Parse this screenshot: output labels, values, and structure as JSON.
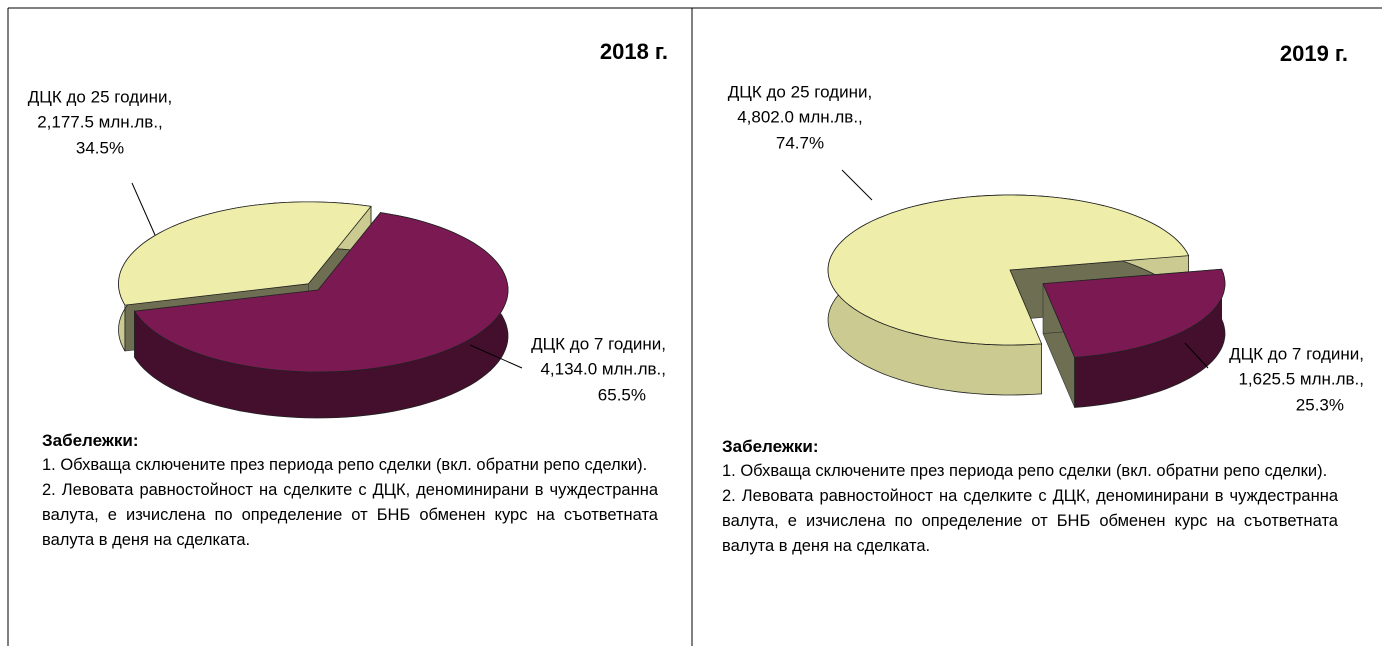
{
  "chart_data": [
    {
      "type": "pie3d",
      "title": "2018 г.",
      "categories": [
        "ДЦК до 25 години,",
        "ДЦК до 7 години,"
      ],
      "values": [
        2177.5,
        4134.0
      ],
      "value_labels": [
        "2,177.5 млн.лв.,",
        "4,134.0 млн.лв.,"
      ],
      "percentages": [
        34.5,
        65.5
      ],
      "percentage_labels": [
        "34.5%",
        "65.5%"
      ],
      "colors": [
        "#eeeeaa",
        "#7b1a52"
      ],
      "notes_title": "Забележки:",
      "notes": [
        "1.  Обхваща сключените през периода репо сделки (вкл. обратни репо сделки).",
        "2. Левовата равностойност на сделките с ДЦК, деноминирани в чуждестранна валута, е изчислена по определение от БНБ обменен курс на съответната валута в деня на сделката."
      ]
    },
    {
      "type": "pie3d",
      "title": "2019 г.",
      "categories": [
        "ДЦК до 25 години,",
        "ДЦК до 7 години,"
      ],
      "values": [
        4802.0,
        1625.5
      ],
      "value_labels": [
        "4,802.0 млн.лв.,",
        "1,625.5 млн.лв.,"
      ],
      "percentages": [
        74.7,
        25.3
      ],
      "percentage_labels": [
        "74.7%",
        "25.3%"
      ],
      "colors": [
        "#eeeeaa",
        "#7b1a52"
      ],
      "notes_title": "Забележки:",
      "notes": [
        "1.  Обхваща сключените през периода репо сделки (вкл. обратни репо сделки).",
        "2. Левовата равностойност на сделките с ДЦК, деноминирани в чуждестранна валута, е изчислена по определение от БНБ обменен курс на съответната валута в деня на сделката."
      ]
    }
  ]
}
